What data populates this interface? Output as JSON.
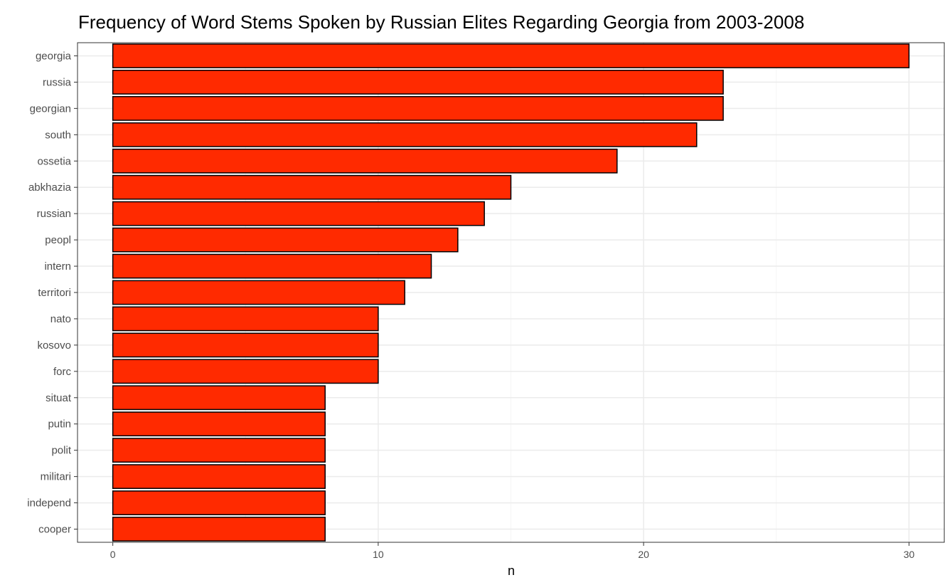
{
  "chart_data": {
    "type": "bar",
    "orientation": "horizontal",
    "title": "Frequency of Word Stems Spoken by Russian Elites Regarding Georgia from 2003-2008",
    "xlabel": "n",
    "ylabel": "",
    "categories": [
      "georgia",
      "russia",
      "georgian",
      "south",
      "ossetia",
      "abkhazia",
      "russian",
      "peopl",
      "intern",
      "territori",
      "nato",
      "kosovo",
      "forc",
      "situat",
      "putin",
      "polit",
      "militari",
      "independ",
      "cooper"
    ],
    "values": [
      30,
      23,
      23,
      22,
      19,
      15,
      14,
      13,
      12,
      11,
      10,
      10,
      10,
      8,
      8,
      8,
      8,
      8,
      8
    ],
    "xlim": [
      -1.33,
      31.33
    ],
    "xticks": [
      "0",
      "10",
      "20",
      "30"
    ],
    "grid": true,
    "bar_fill": "#ff2a00",
    "bar_outline": "#000000",
    "panel_border": "#333333",
    "grid_major": "#ebebeb",
    "grid_minor": "#f5f5f5"
  }
}
